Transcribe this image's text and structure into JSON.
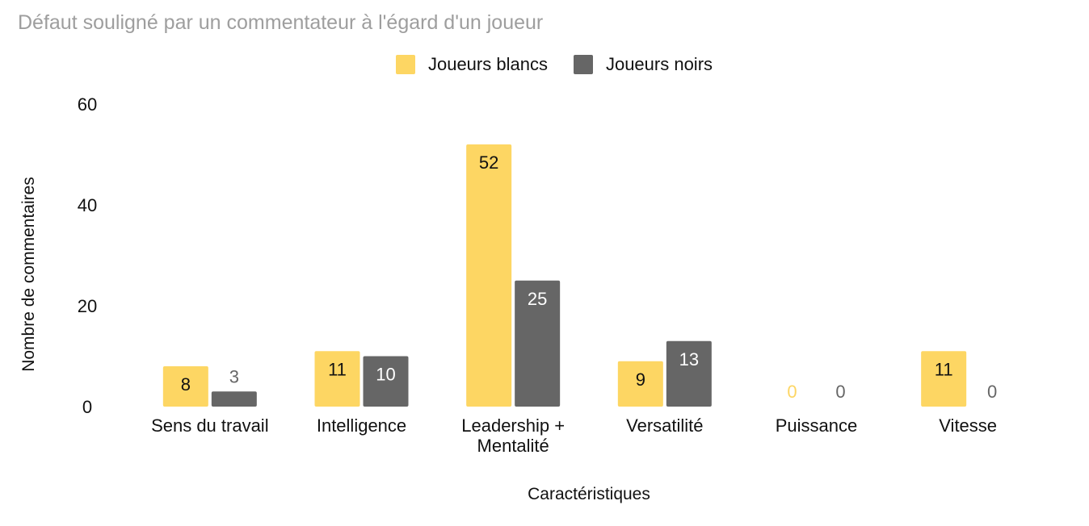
{
  "chart_data": {
    "type": "bar",
    "title": "Défaut souligné par un commentateur à l'égard d'un joueur",
    "xlabel": "Caractéristiques",
    "ylabel": "Nombre de commentaires",
    "ylim": [
      0,
      60
    ],
    "yticks": [
      "0",
      "20",
      "40",
      "60"
    ],
    "grid": false,
    "legend_position": "top-center",
    "categories": [
      [
        "Sens du travail"
      ],
      [
        "Intelligence"
      ],
      [
        "Leadership +",
        "Mentalité"
      ],
      [
        "Versatilité"
      ],
      [
        "Puissance"
      ],
      [
        "Vitesse"
      ]
    ],
    "series": [
      {
        "name": "Joueurs blancs",
        "color": "#FDD663",
        "values": [
          8,
          11,
          52,
          9,
          0,
          11
        ]
      },
      {
        "name": "Joueurs noirs",
        "color": "#666666",
        "values": [
          3,
          10,
          25,
          13,
          0,
          0
        ]
      }
    ]
  }
}
